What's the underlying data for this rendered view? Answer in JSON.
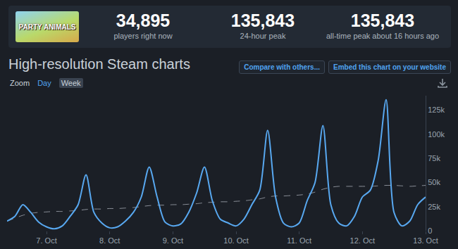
{
  "header": {
    "game_logo_text": "PARTY ANIMALS",
    "stats": [
      {
        "value": "34,895",
        "label": "players right now"
      },
      {
        "value": "135,843",
        "label": "24-hour peak"
      },
      {
        "value": "135,843",
        "label": "all-time peak about 16 hours ago"
      }
    ]
  },
  "controls": {
    "title": "High-resolution Steam charts",
    "buttons": [
      "Compare with others...",
      "Embed this chart on your website"
    ],
    "zoom_label": "Zoom",
    "zoom_options": [
      "Day",
      "Week"
    ],
    "zoom_selected": "Week"
  },
  "chart_data": {
    "type": "line",
    "categories": [
      null,
      null,
      null,
      null,
      null,
      "7. Oct",
      null,
      null,
      null,
      null,
      null,
      null,
      null,
      "8. Oct",
      null,
      null,
      null,
      null,
      null,
      null,
      null,
      "9. Oct",
      null,
      null,
      null,
      null,
      null,
      null,
      null,
      "10. Oct",
      null,
      null,
      null,
      null,
      null,
      null,
      null,
      "11. Oct",
      null,
      null,
      null,
      null,
      null,
      null,
      null,
      "12. Oct",
      null,
      null,
      null,
      null,
      null,
      null,
      null,
      "13. Oct"
    ],
    "series": [
      {
        "color": "#58a8f0",
        "line_style": "solid",
        "values": [
          10000,
          15000,
          27000,
          19000,
          9000,
          4000,
          2000,
          5000,
          15000,
          27000,
          58000,
          19000,
          8000,
          3000,
          4000,
          10000,
          19000,
          35000,
          66000,
          35000,
          9000,
          5000,
          7000,
          19000,
          39000,
          66000,
          31000,
          12000,
          8000,
          5000,
          12000,
          27000,
          42000,
          104000,
          35000,
          8000,
          4000,
          8000,
          31000,
          50000,
          109000,
          27000,
          8000,
          5000,
          15000,
          35000,
          42000,
          73000,
          135843,
          19000,
          5000,
          10000,
          27000,
          34895
        ]
      },
      {
        "color": "#8b9099",
        "line_style": "dashed",
        "values": [
          10000,
          13000,
          16000,
          18000,
          19000,
          19500,
          20000,
          20000,
          20500,
          21000,
          22000,
          22500,
          22500,
          23000,
          23000,
          23500,
          24000,
          25000,
          26000,
          26500,
          26500,
          27000,
          27000,
          27500,
          28000,
          29000,
          29500,
          30000,
          30000,
          30500,
          31000,
          32000,
          33000,
          35000,
          36000,
          36000,
          36500,
          37000,
          38000,
          40000,
          43000,
          45000,
          46000,
          46000,
          46000,
          46000,
          46000,
          46500,
          47000,
          47000,
          46500,
          46000,
          46500,
          47000
        ]
      }
    ],
    "ylim": [
      0,
      140000
    ],
    "yticks": [
      0,
      {
        "value": 25000,
        "label": "25k"
      },
      {
        "value": 50000,
        "label": "50k"
      },
      {
        "value": 75000,
        "label": "75k"
      },
      {
        "value": 100000,
        "label": "100k"
      },
      {
        "value": 125000,
        "label": "125k"
      }
    ],
    "grid": false
  }
}
